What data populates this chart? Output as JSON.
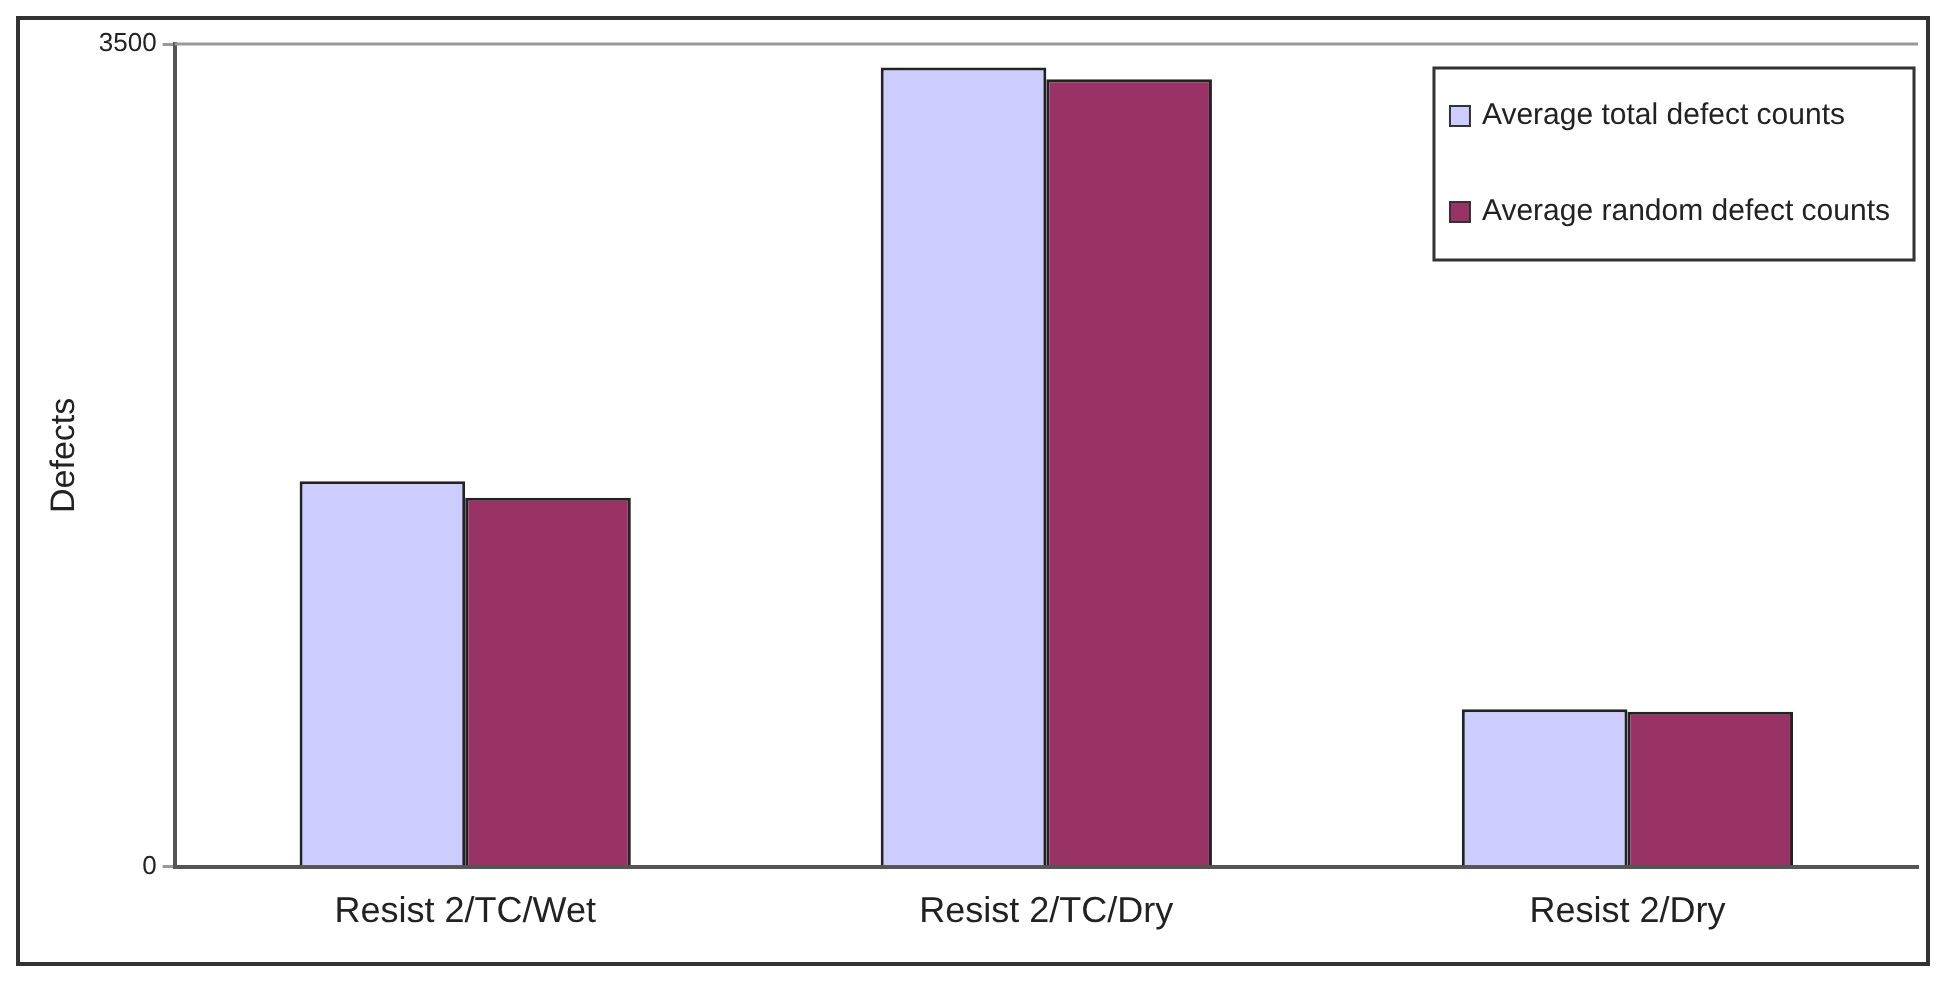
{
  "chart_data": {
    "type": "bar",
    "ylabel": "Defects",
    "categories": [
      "Resist 2/TC/Wet",
      "Resist 2/TC/Dry",
      "Resist 2/Dry"
    ],
    "series": [
      {
        "name": "Average total defect counts",
        "color": "#ccccff",
        "values": [
          1640,
          3400,
          670
        ]
      },
      {
        "name": "Average random defect counts",
        "color": "#993366",
        "values": [
          1570,
          3350,
          660
        ]
      }
    ],
    "ylim": [
      0,
      3500
    ],
    "yticks": [
      0,
      3500
    ],
    "legend": "top right"
  }
}
